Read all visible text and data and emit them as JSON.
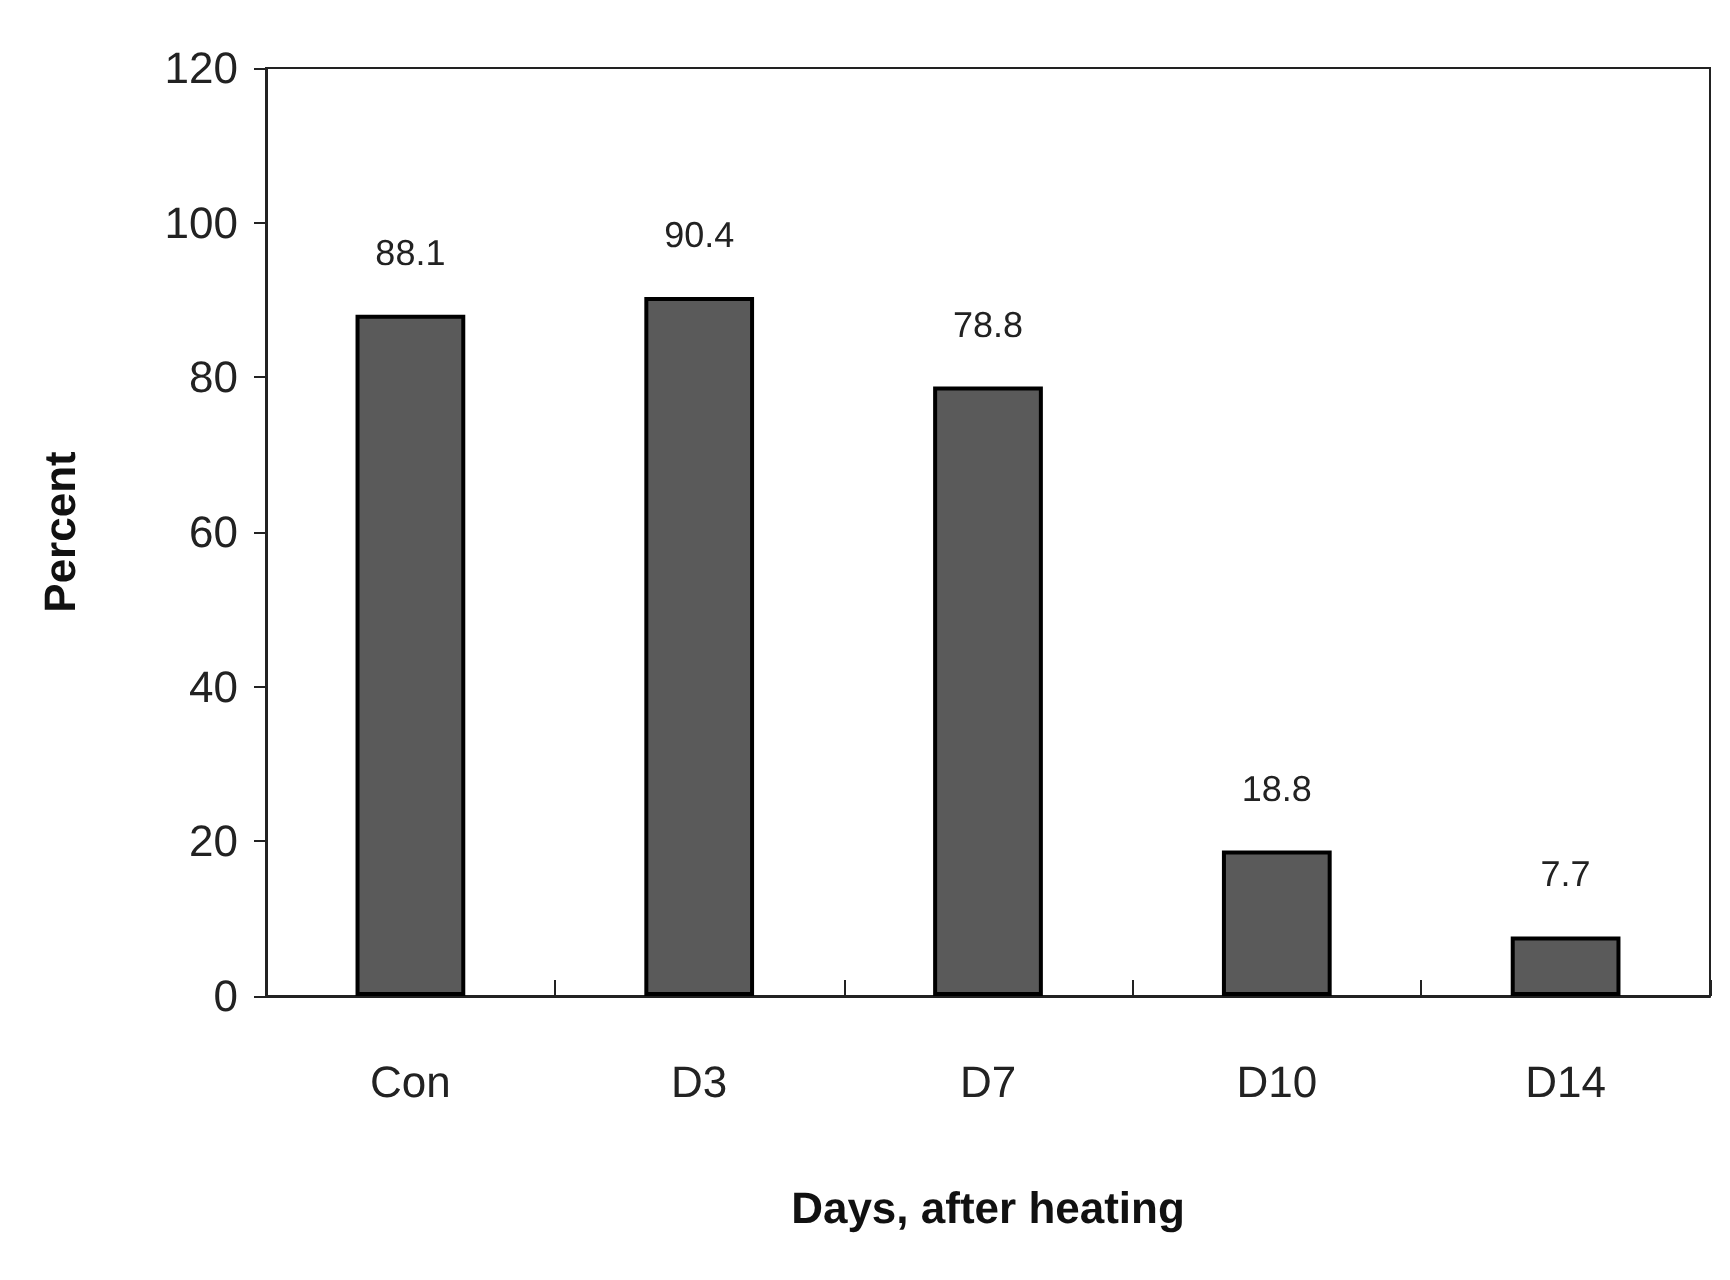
{
  "chart_data": {
    "type": "bar",
    "xlabel": "Days, after heating",
    "ylabel": "Percent",
    "categories": [
      "Con",
      "D3",
      "D7",
      "D10",
      "D14"
    ],
    "values": [
      88.1,
      90.4,
      78.8,
      18.8,
      7.7
    ],
    "color": "#5a5a5a",
    "ylim": [
      0,
      120
    ],
    "yticks": [
      0,
      20,
      40,
      60,
      80,
      100,
      120
    ],
    "grid": false,
    "data_labels": true
  }
}
